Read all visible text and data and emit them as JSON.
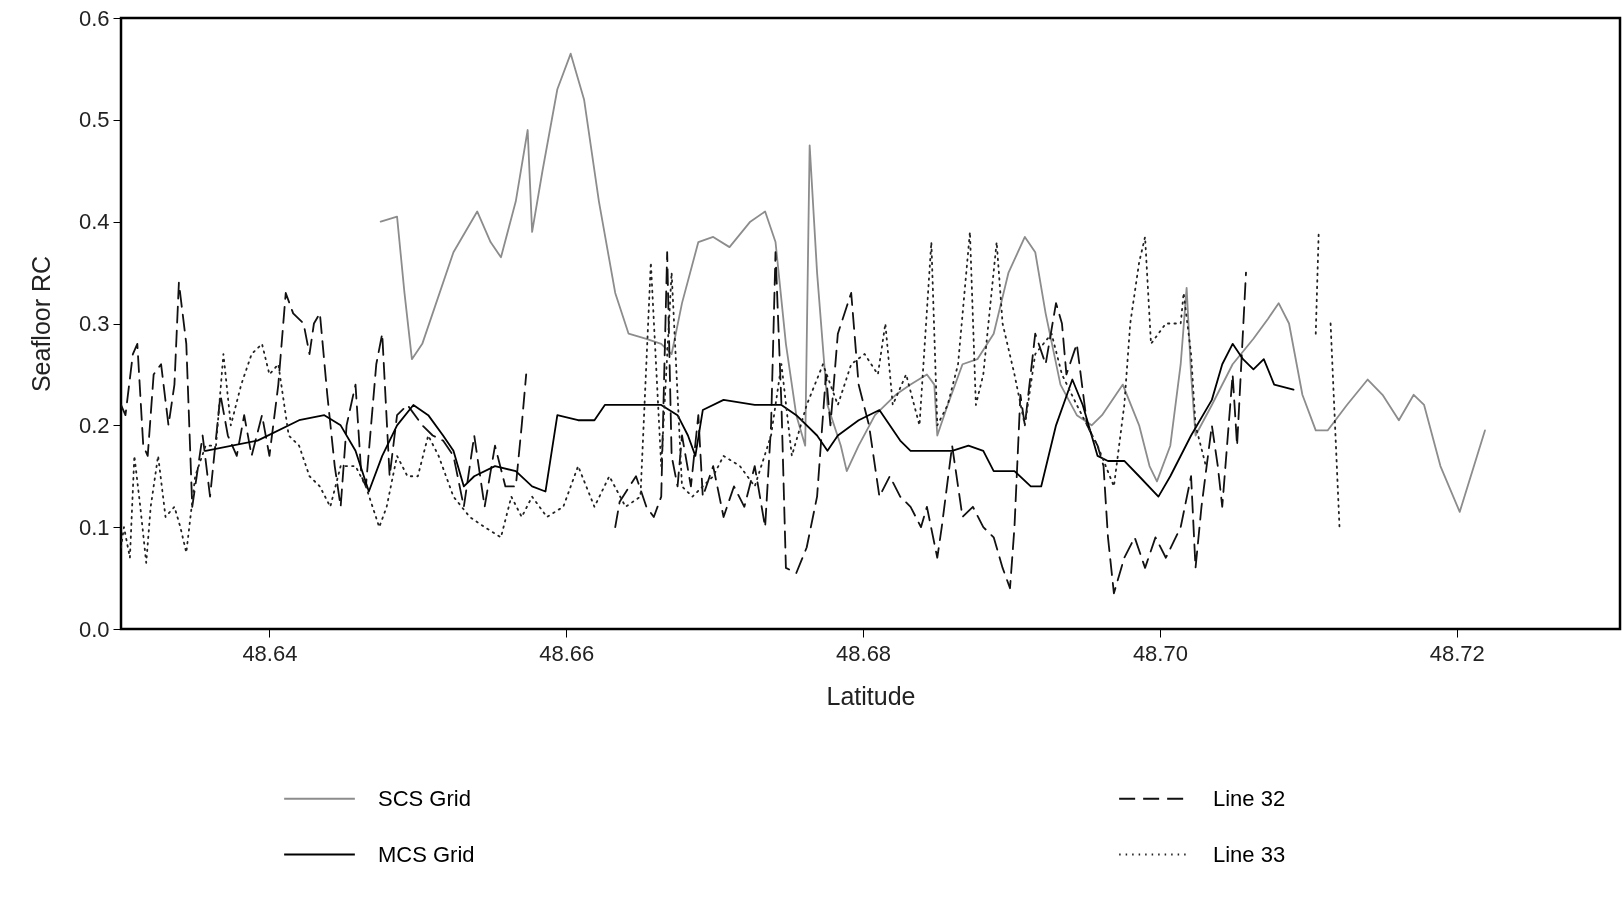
{
  "chart_data": {
    "type": "line",
    "xlabel": "Latitude",
    "ylabel": "Seafloor RC",
    "xlim": [
      48.63,
      48.731
    ],
    "ylim": [
      0,
      0.6
    ],
    "xticks": [
      48.64,
      48.66,
      48.68,
      {
        "value": 48.7,
        "label": "48.70"
      },
      48.72
    ],
    "yticks": [
      {
        "value": 0,
        "label": "0.0"
      },
      0.1,
      0.2,
      0.3,
      0.4,
      0.5,
      0.6
    ],
    "legend": "bottom",
    "grid": false,
    "marker": "none",
    "series": [
      {
        "name": "SCS Grid",
        "color": "#8c8c8c",
        "line_style": "solid",
        "x": [
          48.6475,
          48.6486,
          48.6491,
          48.6496,
          48.6503,
          48.6524,
          48.654,
          48.6549,
          48.6556,
          48.6566,
          48.6574,
          48.6577,
          48.6584,
          48.6594,
          48.6603,
          48.6612,
          48.6622,
          48.6633,
          48.6642,
          48.6654,
          48.6664,
          48.6671,
          48.6678,
          48.6689,
          48.6699,
          48.671,
          48.6724,
          48.6734,
          48.6741,
          48.6748,
          48.6755,
          48.6761,
          48.6764,
          48.6769,
          48.6776,
          48.6785,
          48.6789,
          48.6797,
          48.6808,
          48.6822,
          48.6832,
          48.6843,
          48.6848,
          48.685,
          48.6857,
          48.6867,
          48.6877,
          48.6888,
          48.6898,
          48.6909,
          48.6916,
          48.6923,
          48.6933,
          48.6944,
          48.6954,
          48.6961,
          48.6975,
          48.6986,
          48.6993,
          48.6998,
          48.7007,
          48.7014,
          48.7018,
          48.7021,
          48.7024,
          48.7035,
          48.7049,
          48.7063,
          48.7073,
          48.708,
          48.7087,
          48.7096,
          48.7105,
          48.7113,
          48.7126,
          48.714,
          48.715,
          48.7161,
          48.7171,
          48.7178,
          48.7189,
          48.7202,
          48.7219
        ],
        "values": [
          0.4,
          0.405,
          0.33,
          0.265,
          0.28,
          0.37,
          0.41,
          0.38,
          0.365,
          0.42,
          0.49,
          0.39,
          0.45,
          0.53,
          0.565,
          0.52,
          0.42,
          0.33,
          0.29,
          0.285,
          0.28,
          0.27,
          0.32,
          0.38,
          0.385,
          0.375,
          0.4,
          0.41,
          0.38,
          0.28,
          0.21,
          0.18,
          0.475,
          0.35,
          0.22,
          0.18,
          0.155,
          0.18,
          0.21,
          0.23,
          0.24,
          0.25,
          0.24,
          0.19,
          0.22,
          0.26,
          0.265,
          0.29,
          0.35,
          0.385,
          0.37,
          0.31,
          0.24,
          0.21,
          0.2,
          0.21,
          0.24,
          0.2,
          0.16,
          0.145,
          0.18,
          0.26,
          0.335,
          0.25,
          0.19,
          0.22,
          0.26,
          0.285,
          0.305,
          0.32,
          0.3,
          0.23,
          0.195,
          0.195,
          0.22,
          0.245,
          0.23,
          0.205,
          0.23,
          0.22,
          0.16,
          0.115,
          0.195
        ]
      },
      {
        "name": "Line 32",
        "color": "#111111",
        "line_style": "dashed",
        "x": [
          48.63,
          48.6303,
          48.6308,
          48.6311,
          48.6315,
          48.6318,
          48.6322,
          48.6327,
          48.6332,
          48.6336,
          48.6339,
          48.6344,
          48.6348,
          48.6351,
          48.6355,
          48.636,
          48.6367,
          48.6372,
          48.6378,
          48.6383,
          48.6388,
          48.6395,
          48.64,
          48.6406,
          48.6411,
          48.6416,
          48.6423,
          48.6427,
          48.643,
          48.6434,
          48.6439,
          48.6444,
          48.6448,
          48.6452,
          48.6458,
          48.6462,
          48.6465,
          48.6472,
          48.6476,
          48.6481,
          48.6486,
          48.6493,
          48.6503,
          48.651,
          48.6517,
          48.6524,
          48.6531,
          48.6538,
          48.6545,
          48.6552,
          48.6559,
          48.6566,
          48.657,
          48.6573,
          48.66,
          48.6633,
          48.6636,
          48.6647,
          48.6654,
          48.6659,
          48.6664,
          48.6668,
          48.6671,
          48.6675,
          48.6678,
          48.6684,
          48.6689,
          48.6692,
          48.6699,
          48.6706,
          48.6713,
          48.672,
          48.6727,
          48.6734,
          48.6738,
          48.6741,
          48.6745,
          48.6748,
          48.6755,
          48.6762,
          48.6769,
          48.6775,
          48.6778,
          48.6783,
          48.6792,
          48.6797,
          48.6804,
          48.6811,
          48.6818,
          48.6825,
          48.6832,
          48.6839,
          48.6843,
          48.685,
          48.6853,
          48.686,
          48.6867,
          48.6874,
          48.6881,
          48.6888,
          48.6894,
          48.6899,
          48.6902,
          48.6906,
          48.6909,
          48.6916,
          48.6923,
          48.693,
          48.6934,
          48.6937,
          48.6944,
          48.6951,
          48.6958,
          48.6962,
          48.6965,
          48.6969,
          48.6976,
          48.6983,
          48.699,
          48.6997,
          48.7004,
          48.7014,
          48.7021,
          48.7024,
          48.7028,
          48.7035,
          48.7039,
          48.7042,
          48.7049,
          48.7052,
          48.7058
        ],
        "values": [
          0.22,
          0.21,
          0.27,
          0.28,
          0.18,
          0.17,
          0.25,
          0.26,
          0.2,
          0.24,
          0.34,
          0.28,
          0.12,
          0.15,
          0.19,
          0.13,
          0.23,
          0.19,
          0.17,
          0.21,
          0.17,
          0.21,
          0.17,
          0.24,
          0.33,
          0.31,
          0.3,
          0.27,
          0.3,
          0.31,
          0.23,
          0.16,
          0.12,
          0.2,
          0.24,
          0.15,
          0.14,
          0.26,
          0.29,
          0.15,
          0.21,
          0.22,
          0.2,
          0.19,
          0.185,
          0.17,
          0.12,
          0.19,
          0.12,
          0.18,
          0.14,
          0.14,
          0.2,
          0.25,
          null,
          0.1,
          0.125,
          0.15,
          0.12,
          0.11,
          0.13,
          0.37,
          0.17,
          0.14,
          0.19,
          0.14,
          0.21,
          0.13,
          0.16,
          0.11,
          0.14,
          0.12,
          0.16,
          0.1,
          0.2,
          0.37,
          0.22,
          0.06,
          0.055,
          0.08,
          0.13,
          0.25,
          0.2,
          0.29,
          0.33,
          0.24,
          0.2,
          0.13,
          0.15,
          0.13,
          0.12,
          0.1,
          0.12,
          0.07,
          0.1,
          0.18,
          0.11,
          0.12,
          0.1,
          0.09,
          0.06,
          0.04,
          0.1,
          0.23,
          0.2,
          0.29,
          0.26,
          0.32,
          0.3,
          0.25,
          0.28,
          0.2,
          0.18,
          0.16,
          0.09,
          0.035,
          0.07,
          0.09,
          0.06,
          0.09,
          0.07,
          0.1,
          0.15,
          0.06,
          0.12,
          0.2,
          0.16,
          0.12,
          0.25,
          0.18,
          0.35
        ]
      },
      {
        "name": "MCS Grid",
        "color": "#000000",
        "line_style": "solid",
        "x": [
          48.6357,
          48.6392,
          48.642,
          48.6437,
          48.6448,
          48.6458,
          48.6467,
          48.6476,
          48.6486,
          48.6497,
          48.6507,
          48.6517,
          48.6524,
          48.6531,
          48.6538,
          48.6552,
          48.6566,
          48.6577,
          48.6586,
          48.6594,
          48.6608,
          48.6619,
          48.6626,
          48.6643,
          48.6664,
          48.6675,
          48.6682,
          48.6687,
          48.6692,
          48.6706,
          48.6727,
          48.6745,
          48.6755,
          48.6769,
          48.6776,
          48.6783,
          48.6797,
          48.6811,
          48.6825,
          48.6832,
          48.6846,
          48.686,
          48.6871,
          48.6881,
          48.6888,
          48.6902,
          48.6913,
          48.692,
          48.693,
          48.6941,
          48.6948,
          48.6958,
          48.6965,
          48.6976,
          48.6986,
          48.6999,
          48.7007,
          48.7021,
          48.7035,
          48.7042,
          48.7049,
          48.7056,
          48.7063,
          48.707,
          48.7077,
          48.709
        ],
        "values": [
          0.175,
          0.185,
          0.205,
          0.21,
          0.2,
          0.175,
          0.135,
          0.17,
          0.2,
          0.22,
          0.21,
          0.19,
          0.175,
          0.14,
          0.15,
          0.16,
          0.155,
          0.14,
          0.135,
          0.21,
          0.205,
          0.205,
          0.22,
          0.22,
          0.22,
          0.21,
          0.19,
          0.17,
          0.215,
          0.225,
          0.22,
          0.22,
          0.21,
          0.19,
          0.175,
          0.19,
          0.205,
          0.215,
          0.185,
          0.175,
          0.175,
          0.175,
          0.18,
          0.175,
          0.155,
          0.155,
          0.14,
          0.14,
          0.2,
          0.245,
          0.22,
          0.17,
          0.165,
          0.165,
          0.15,
          0.13,
          0.15,
          0.19,
          0.225,
          0.26,
          0.28,
          0.265,
          0.255,
          0.265,
          0.24,
          0.235
        ]
      },
      {
        "name": "Line 33",
        "color": "#222222",
        "line_style": "dotted",
        "x": [
          48.63,
          48.6302,
          48.6306,
          48.6309,
          48.6313,
          48.6317,
          48.632,
          48.6325,
          48.633,
          48.6336,
          48.634,
          48.6344,
          48.635,
          48.6357,
          48.6364,
          48.6369,
          48.6374,
          48.6381,
          48.6388,
          48.6395,
          48.64,
          48.6406,
          48.6413,
          48.642,
          48.6427,
          48.6434,
          48.6441,
          48.6448,
          48.6458,
          48.6465,
          48.6474,
          48.6479,
          48.6486,
          48.6493,
          48.65,
          48.6507,
          48.6514,
          48.6524,
          48.6535,
          48.6545,
          48.6556,
          48.6563,
          48.657,
          48.6577,
          48.6587,
          48.6598,
          48.6608,
          48.6619,
          48.6629,
          48.664,
          48.665,
          48.6657,
          48.6664,
          48.6671,
          48.6678,
          48.6685,
          48.6699,
          48.6706,
          48.6717,
          48.6727,
          48.6738,
          48.6745,
          48.6752,
          48.6762,
          48.6773,
          48.6783,
          48.6792,
          48.6801,
          48.681,
          48.6815,
          48.682,
          48.6829,
          48.6838,
          48.6846,
          48.685,
          48.6857,
          48.6864,
          48.6872,
          48.6876,
          48.6881,
          48.689,
          48.6894,
          48.6902,
          48.6909,
          48.6916,
          48.6927,
          48.6934,
          48.6944,
          48.6951,
          48.6958,
          48.6969,
          48.6976,
          48.698,
          48.6986,
          48.699,
          48.6994,
          48.7004,
          48.7014,
          48.7016,
          48.7021,
          48.7024,
          48.7031,
          48.7033,
          48.7105,
          48.7107,
          48.7111,
          48.7115,
          48.7121
        ],
        "values": [
          0.08,
          0.1,
          0.07,
          0.17,
          0.12,
          0.065,
          0.12,
          0.17,
          0.11,
          0.12,
          0.1,
          0.075,
          0.15,
          0.18,
          0.18,
          0.27,
          0.2,
          0.24,
          0.27,
          0.28,
          0.25,
          0.26,
          0.19,
          0.18,
          0.15,
          0.14,
          0.12,
          0.16,
          0.16,
          0.14,
          0.1,
          0.12,
          0.17,
          0.15,
          0.15,
          0.19,
          0.17,
          0.13,
          0.11,
          0.1,
          0.09,
          0.13,
          0.11,
          0.13,
          0.11,
          0.12,
          0.16,
          0.12,
          0.15,
          0.12,
          0.13,
          0.36,
          0.16,
          0.35,
          0.14,
          0.13,
          0.15,
          0.17,
          0.16,
          0.14,
          0.19,
          0.26,
          0.17,
          0.22,
          0.26,
          0.22,
          0.26,
          0.27,
          0.25,
          0.3,
          0.22,
          0.25,
          0.2,
          0.38,
          0.2,
          0.22,
          0.26,
          0.39,
          0.22,
          0.25,
          0.38,
          0.3,
          0.25,
          0.2,
          0.27,
          0.29,
          0.25,
          0.22,
          0.2,
          0.18,
          0.14,
          0.22,
          0.3,
          0.36,
          0.385,
          0.28,
          0.3,
          0.3,
          0.33,
          0.27,
          0.2,
          0.16,
          null,
          0.29,
          0.39,
          null,
          0.3,
          0.1
        ]
      }
    ]
  }
}
